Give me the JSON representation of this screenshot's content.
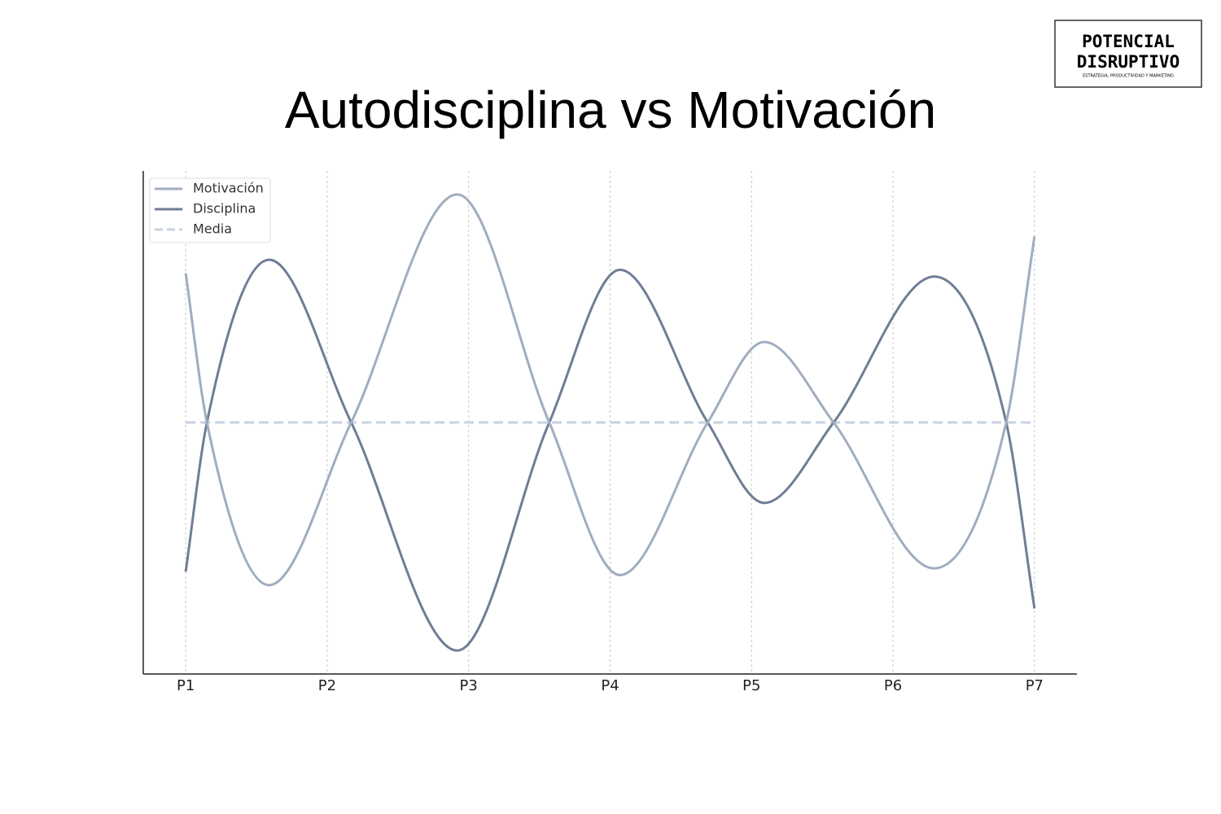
{
  "logo": {
    "title_line1": "POTENCIAL",
    "title_line2": "DISRUPTIVO",
    "tagline": "ESTRATEGIA, PRODUCTIVIDAD Y MARKETING"
  },
  "chart_data": {
    "type": "line",
    "title": "Autodisciplina vs Motivación",
    "x": [
      1,
      1.15,
      1.59,
      2.17,
      2.92,
      3.57,
      4.07,
      4.69,
      5.09,
      5.58,
      6.29,
      6.8,
      7
    ],
    "series": [
      {
        "name": "Motivación",
        "color": "#a0adbf",
        "linestyle": "solid",
        "values": [
          0.89,
          0,
          -0.97,
          0,
          1.36,
          0,
          -0.91,
          0,
          0.48,
          0,
          -0.87,
          0,
          1.11
        ]
      },
      {
        "name": "Disciplina",
        "color": "#6f7d96",
        "linestyle": "solid",
        "values": [
          -0.89,
          0,
          0.97,
          0,
          -1.36,
          0,
          0.91,
          0,
          -0.48,
          0,
          0.87,
          0,
          -1.11
        ]
      },
      {
        "name": "Media",
        "color": "#c8d2e0",
        "linestyle": "dashed",
        "values": [
          0,
          0,
          0,
          0,
          0,
          0,
          0,
          0,
          0,
          0,
          0,
          0,
          0
        ]
      }
    ],
    "xlim": [
      0.7,
      7.3
    ],
    "ylim": [
      -1.5,
      1.5
    ],
    "xticks": [
      {
        "value": 1,
        "label": "P1"
      },
      {
        "value": 2,
        "label": "P2"
      },
      {
        "value": 3,
        "label": "P3"
      },
      {
        "value": 4,
        "label": "P4"
      },
      {
        "value": 5,
        "label": "P5"
      },
      {
        "value": 6,
        "label": "P6"
      },
      {
        "value": 7,
        "label": "P7"
      }
    ],
    "grid": true,
    "legend": "upper left"
  }
}
